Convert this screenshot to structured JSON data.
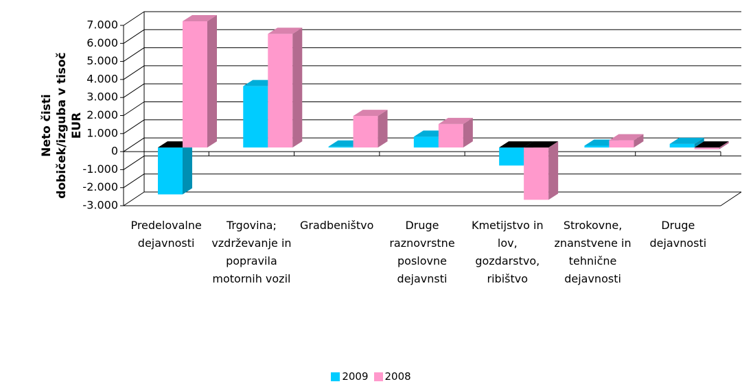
{
  "chart_data": {
    "type": "bar3d",
    "y_label": "Neto čisti dobiček/izguba v tisoč EUR",
    "categories": [
      "Predelovalne dejavnosti",
      "Trgovina; vzdrževanje in popravila motornih vozil",
      "Gradbeništvo",
      "Druge raznovrstne poslovne dejavnsti",
      "Kmetijstvo in lov, gozdarstvo, ribištvo",
      "Strokovne, znanstvene in tehnične dejavnosti",
      "Druge dejavnosti"
    ],
    "series": [
      {
        "name": "2009",
        "color": "#00ccff",
        "values": [
          -2600,
          3400,
          50,
          600,
          -1000,
          100,
          200
        ]
      },
      {
        "name": "2008",
        "color": "#ff99cc",
        "values": [
          7000,
          6300,
          1750,
          1300,
          -2900,
          400,
          -100
        ]
      }
    ],
    "ylim": [
      -3000,
      7000
    ],
    "yticks": [
      {
        "value": -3000,
        "label": "-3.000"
      },
      {
        "value": -2000,
        "label": "-2.000"
      },
      {
        "value": -1000,
        "label": "-1.000"
      },
      0,
      {
        "value": 1000,
        "label": "1.000"
      },
      {
        "value": 2000,
        "label": "2.000"
      },
      {
        "value": 3000,
        "label": "3.000"
      },
      {
        "value": 4000,
        "label": "4.000"
      },
      {
        "value": 5000,
        "label": "5.000"
      },
      {
        "value": 6000,
        "label": "6.000"
      },
      {
        "value": 7000,
        "label": "7.000"
      }
    ],
    "grid": true,
    "legend": "bottom"
  }
}
